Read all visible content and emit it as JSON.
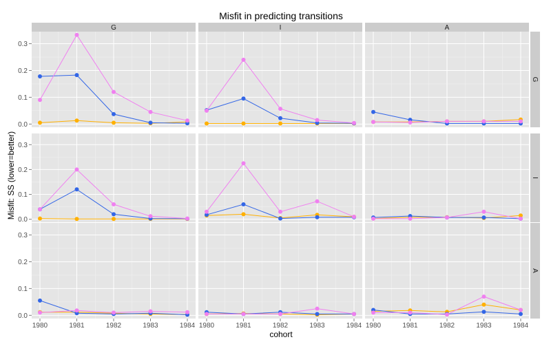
{
  "chart_data": {
    "type": "line",
    "title": "Misfit in predicting transitions",
    "xlabel": "cohort",
    "ylabel": "Misfit: SS (lower=better)",
    "x": [
      1980,
      1981,
      1982,
      1983,
      1984
    ],
    "ylim": [
      -0.012,
      0.345
    ],
    "yticks": [
      0.0,
      0.1,
      0.2,
      0.3
    ],
    "ytick_labels": [
      "0.0",
      "0.1",
      "0.2",
      "0.3"
    ],
    "grid": true,
    "facet_columns": [
      "G",
      "I",
      "A"
    ],
    "facet_rows": [
      "G",
      "I",
      "A"
    ],
    "colors": {
      "blue": "#3366e6",
      "pink": "#f080f0",
      "orange": "#ffb000",
      "panel_bg": "#e5e5e5",
      "strip_bg": "#cccccc"
    },
    "panels": [
      {
        "row": "G",
        "col": "G",
        "series": [
          {
            "color": "blue",
            "values": [
              0.178,
              0.183,
              0.037,
              0.005,
              0.003
            ]
          },
          {
            "color": "pink",
            "values": [
              0.09,
              0.333,
              0.12,
              0.045,
              0.013
            ]
          },
          {
            "color": "orange",
            "values": [
              0.005,
              0.013,
              0.005,
              0.003,
              0.008
            ]
          }
        ]
      },
      {
        "row": "G",
        "col": "I",
        "series": [
          {
            "color": "blue",
            "values": [
              0.052,
              0.095,
              0.022,
              0.004,
              0.003
            ]
          },
          {
            "color": "pink",
            "values": [
              0.05,
              0.24,
              0.057,
              0.015,
              0.004
            ]
          },
          {
            "color": "orange",
            "values": [
              0.002,
              0.002,
              0.002,
              0.002,
              0.002
            ]
          }
        ]
      },
      {
        "row": "G",
        "col": "A",
        "series": [
          {
            "color": "blue",
            "values": [
              0.045,
              0.016,
              0.002,
              0.002,
              0.002
            ]
          },
          {
            "color": "pink",
            "values": [
              0.008,
              0.006,
              0.01,
              0.01,
              0.01
            ]
          },
          {
            "color": "orange",
            "values": [
              0.008,
              0.008,
              0.01,
              0.01,
              0.017
            ]
          }
        ]
      },
      {
        "row": "I",
        "col": "G",
        "series": [
          {
            "color": "blue",
            "values": [
              0.04,
              0.12,
              0.02,
              0.003,
              0.002
            ]
          },
          {
            "color": "pink",
            "values": [
              0.04,
              0.2,
              0.06,
              0.012,
              0.003
            ]
          },
          {
            "color": "orange",
            "values": [
              0.003,
              0.001,
              0.001,
              0.001,
              0.001
            ]
          }
        ]
      },
      {
        "row": "I",
        "col": "I",
        "series": [
          {
            "color": "blue",
            "values": [
              0.018,
              0.06,
              0.003,
              0.008,
              0.008
            ]
          },
          {
            "color": "pink",
            "values": [
              0.03,
              0.225,
              0.03,
              0.072,
              0.01
            ]
          },
          {
            "color": "orange",
            "values": [
              0.015,
              0.02,
              0.005,
              0.018,
              0.01
            ]
          }
        ]
      },
      {
        "row": "I",
        "col": "A",
        "series": [
          {
            "color": "blue",
            "values": [
              0.007,
              0.013,
              0.007,
              0.007,
              0.002
            ]
          },
          {
            "color": "pink",
            "values": [
              0.002,
              0.002,
              0.007,
              0.03,
              0.002
            ]
          },
          {
            "color": "orange",
            "values": [
              0.003,
              0.008,
              0.008,
              0.005,
              0.015
            ]
          }
        ]
      },
      {
        "row": "A",
        "col": "G",
        "series": [
          {
            "color": "blue",
            "values": [
              0.055,
              0.008,
              0.005,
              0.008,
              0.002
            ]
          },
          {
            "color": "pink",
            "values": [
              0.01,
              0.018,
              0.01,
              0.015,
              0.012
            ]
          },
          {
            "color": "orange",
            "values": [
              0.012,
              0.012,
              0.008,
              0.005,
              0.003
            ]
          }
        ]
      },
      {
        "row": "A",
        "col": "I",
        "series": [
          {
            "color": "blue",
            "values": [
              0.012,
              0.005,
              0.012,
              0.005,
              0.005
            ]
          },
          {
            "color": "pink",
            "values": [
              0.005,
              0.005,
              0.005,
              0.025,
              0.005
            ]
          },
          {
            "color": "orange",
            "values": [
              0.005,
              0.007,
              0.005,
              0.002,
              0.005
            ]
          }
        ]
      },
      {
        "row": "A",
        "col": "A",
        "series": [
          {
            "color": "blue",
            "values": [
              0.02,
              0.005,
              0.005,
              0.013,
              0.005
            ]
          },
          {
            "color": "pink",
            "values": [
              0.01,
              0.01,
              0.003,
              0.07,
              0.02
            ]
          },
          {
            "color": "orange",
            "values": [
              0.015,
              0.018,
              0.013,
              0.04,
              0.02
            ]
          }
        ]
      }
    ]
  }
}
